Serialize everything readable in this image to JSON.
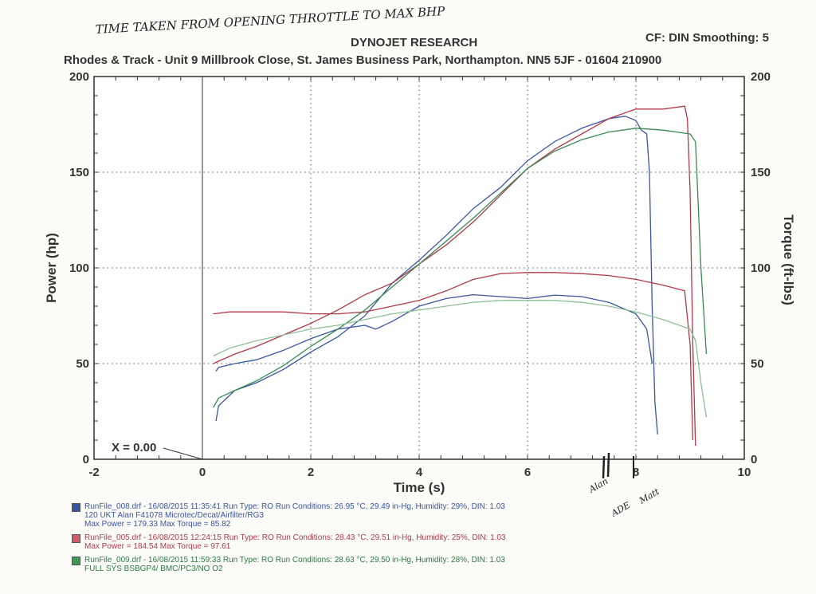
{
  "handwritten": {
    "top_note": "TIME TAKEN FROM OPENING THROTTLE TO MAX BHP",
    "marker_labels": [
      "Alan",
      "ADE",
      "Matt"
    ]
  },
  "header": {
    "title": "DYNOJET RESEARCH",
    "settings": "CF: DIN  Smoothing: 5",
    "address": "Rhodes & Track - Unit 9 Millbrook Close, St. James Business Park, Northampton. NN5 5JF - 01604 210900"
  },
  "chart_data": {
    "type": "line",
    "title": "DYNOJET RESEARCH",
    "xlabel": "Time (s)",
    "ylabel": "Power (hp)",
    "y2label": "Torque (ft-lbs)",
    "xlim": [
      -2,
      10
    ],
    "ylim": [
      0,
      200
    ],
    "y2lim": [
      0,
      200
    ],
    "x_ticks": [
      "-2",
      "0",
      "2",
      "4",
      "6",
      "8",
      "10"
    ],
    "y_ticks": [
      "0",
      "50",
      "100",
      "150",
      "200"
    ],
    "y2_ticks": [
      "0",
      "50",
      "100",
      "150",
      "200"
    ],
    "grid": true,
    "marker_label": "X = 0.00",
    "series": [
      {
        "name": "RunFile_008.drf",
        "kind": "power",
        "color": "#3a55a0",
        "x": [
          0.25,
          0.3,
          0.6,
          1.0,
          1.5,
          2.0,
          2.5,
          3.0,
          3.5,
          4.0,
          4.5,
          5.0,
          5.5,
          6.0,
          6.5,
          7.0,
          7.5,
          7.8,
          8.0,
          8.1,
          8.2,
          8.25,
          8.3,
          8.35,
          8.4
        ],
        "y": [
          20,
          28,
          36,
          40,
          47,
          56,
          64,
          75,
          92,
          104,
          117,
          131,
          142,
          156,
          166,
          173,
          178,
          179.3,
          177,
          172,
          170,
          150,
          80,
          30,
          13
        ]
      },
      {
        "name": "RunFile_008.drf",
        "kind": "torque",
        "color": "#3a55a0",
        "x": [
          0.25,
          0.3,
          0.6,
          1.0,
          1.5,
          2.0,
          2.5,
          3.0,
          3.2,
          3.5,
          4.0,
          4.5,
          5.0,
          5.5,
          6.0,
          6.5,
          7.0,
          7.5,
          8.0,
          8.2,
          8.3
        ],
        "y": [
          46,
          48,
          50,
          52,
          57,
          63,
          68,
          70,
          68,
          72,
          80,
          84,
          86,
          85,
          84,
          85.8,
          85,
          82,
          76,
          68,
          50
        ]
      },
      {
        "name": "RunFile_005.drf",
        "kind": "power",
        "color": "#b03a48",
        "x": [
          0.2,
          0.6,
          1.0,
          1.5,
          2.0,
          2.5,
          3.0,
          3.5,
          4.0,
          4.5,
          5.0,
          5.5,
          6.0,
          6.5,
          7.0,
          7.5,
          8.0,
          8.5,
          8.9,
          8.95,
          9.0,
          9.05,
          9.1
        ],
        "y": [
          50,
          55,
          59,
          65,
          71,
          78,
          86,
          92,
          102,
          112,
          124,
          138,
          152,
          162,
          170,
          178,
          183,
          183,
          184.5,
          178,
          140,
          60,
          7
        ]
      },
      {
        "name": "RunFile_005.drf",
        "kind": "torque",
        "color": "#b03a48",
        "x": [
          0.2,
          0.5,
          1.0,
          1.5,
          2.0,
          2.5,
          3.0,
          3.5,
          4.0,
          4.5,
          5.0,
          5.5,
          6.0,
          6.5,
          7.0,
          7.5,
          8.0,
          8.5,
          8.9,
          9.0,
          9.05
        ],
        "y": [
          76,
          77,
          77,
          77,
          76,
          76,
          77,
          80,
          83,
          88,
          94,
          97,
          97.6,
          97.6,
          97,
          96,
          94,
          91,
          88,
          60,
          10
        ]
      },
      {
        "name": "RunFile_009.drf",
        "kind": "power",
        "color": "#3a8a52",
        "x": [
          0.2,
          0.3,
          0.6,
          1.0,
          1.5,
          2.0,
          2.5,
          3.0,
          3.5,
          4.0,
          4.5,
          5.0,
          5.5,
          6.0,
          6.5,
          7.0,
          7.5,
          8.0,
          8.5,
          9.0,
          9.1,
          9.2,
          9.3
        ],
        "y": [
          27,
          32,
          36,
          41,
          49,
          59,
          68,
          78,
          90,
          102,
          114,
          126,
          139,
          152,
          161,
          167,
          171,
          173,
          172,
          170,
          166,
          100,
          55
        ]
      },
      {
        "name": "RunFile_009.drf",
        "kind": "torque",
        "color": "#8fbf96",
        "x": [
          0.2,
          0.5,
          1.0,
          1.5,
          2.0,
          2.5,
          3.0,
          3.5,
          4.0,
          4.5,
          5.0,
          5.5,
          6.0,
          6.5,
          7.0,
          7.5,
          8.0,
          8.5,
          9.0,
          9.1,
          9.2,
          9.3
        ],
        "y": [
          54,
          58,
          62,
          65,
          68,
          70,
          73,
          76,
          78,
          80,
          82,
          83,
          83,
          83,
          82,
          80,
          77,
          73,
          68,
          62,
          40,
          22
        ]
      }
    ]
  },
  "legend": [
    {
      "color": "#3a55a0",
      "text_color": "#3a55a0",
      "line1": "RunFile_008.drf - 16/08/2015 11:35:41  Run Type: RO  Run Conditions: 26.95 °C, 29.49 in-Hg,  Humidity:  29%, DIN: 1.03",
      "line2": "120 UKT Alan F41078 Microtec/Decat/Airfilter/RG3",
      "line3": "Max Power = 179.33  Max Torque = 85.82"
    },
    {
      "color": "#d05a66",
      "text_color": "#b03a48",
      "line1": "RunFile_005.drf - 16/08/2015 12:24:15  Run Type: RO  Run Conditions: 28.43 °C, 29.51 in-Hg,  Humidity:  25%, DIN: 1.03",
      "line2": "Max Power = 184.54  Max Torque = 97.61",
      "line3": ""
    },
    {
      "color": "#3a9a5a",
      "text_color": "#2e7a44",
      "line1": "RunFile_009.drf - 16/08/2015 11:59:33  Run Type: RO  Run Conditions: 28.63 °C, 29.50 in-Hg,  Humidity:  28%, DIN: 1.03",
      "line2": "FULL SYS BSBGP4/ BMC/PC3/NO O2",
      "line3": ""
    }
  ]
}
